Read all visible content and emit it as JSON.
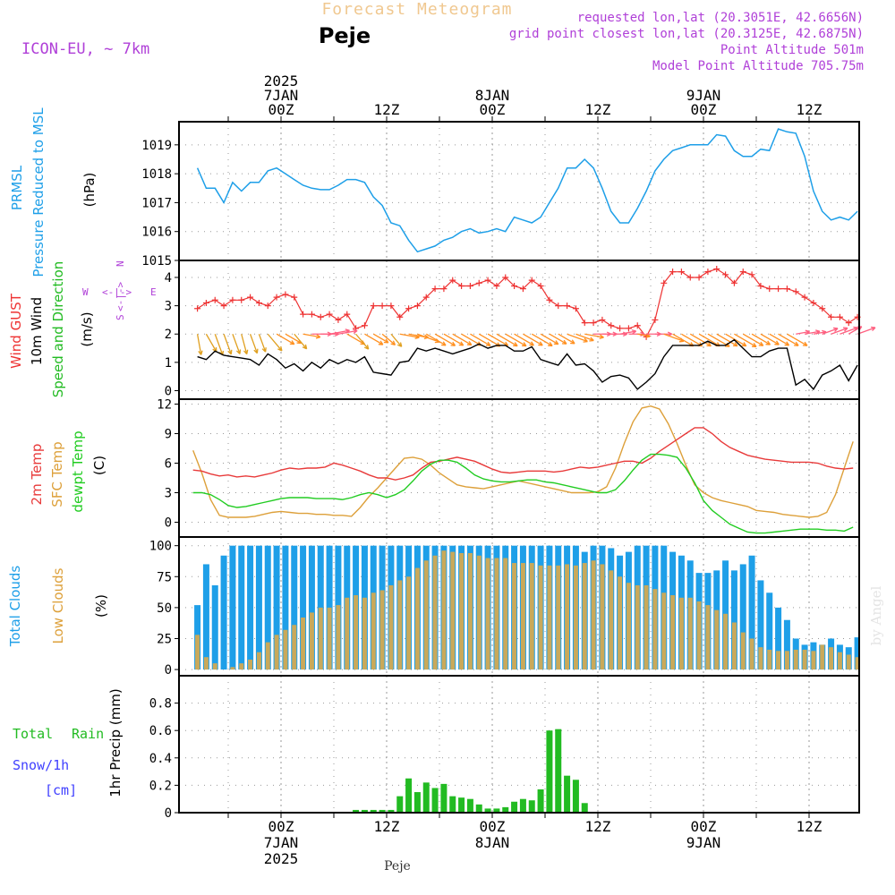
{
  "header": {
    "title": "Forecast Meteogram",
    "location": "Peje",
    "model": "ICON-EU, ~ 7km",
    "requested": "requested lon,lat (20.3051E, 42.6656N)",
    "grid_point": "grid point closest lon,lat (20.3125E, 42.6875N)",
    "point_altitude": "Point Altitude 501m",
    "model_altitude": "Model Point Altitude 705.75m"
  },
  "time_axis": {
    "top_labels": [
      {
        "h": 0,
        "lines": [
          "2025",
          "7JAN",
          "00Z"
        ]
      },
      {
        "h": 12,
        "lines": [
          "12Z"
        ]
      },
      {
        "h": 24,
        "lines": [
          "8JAN",
          "00Z"
        ]
      },
      {
        "h": 36,
        "lines": [
          "12Z"
        ]
      },
      {
        "h": 48,
        "lines": [
          "9JAN",
          "00Z"
        ]
      },
      {
        "h": 60,
        "lines": [
          "12Z"
        ]
      }
    ],
    "bottom_labels": [
      {
        "h": 0,
        "lines": [
          "00Z",
          "7JAN",
          "2025"
        ]
      },
      {
        "h": 12,
        "lines": [
          "12Z"
        ]
      },
      {
        "h": 24,
        "lines": [
          "00Z",
          "8JAN"
        ]
      },
      {
        "h": 36,
        "lines": [
          "12Z"
        ]
      },
      {
        "h": 48,
        "lines": [
          "00Z",
          "9JAN"
        ]
      },
      {
        "h": 60,
        "lines": [
          "12Z"
        ]
      }
    ],
    "footer_location": "Peje",
    "watermark": "by Angel"
  },
  "colors": {
    "pressure": "#1e9fe8",
    "gust": "#ee3333",
    "wind": "#000000",
    "windlabel": "#22bb22",
    "temp2m": "#e83a3a",
    "sfc": "#dda03a",
    "dewpt": "#22cc22",
    "total_clouds": "#1e9fe8",
    "low_clouds": "#c9a95a",
    "rain": "#22bb22",
    "snow": "#4040ff",
    "purple": "#b040d8",
    "title_ghost": "#f0c890"
  },
  "panel_labels": {
    "pressure": {
      "a": "PRMSL",
      "b": "Pressure Reduced to MSL",
      "unit": "(hPa)"
    },
    "wind": {
      "a": "Wind GUST",
      "b": "10m Wind",
      "c": "Speed and Direction",
      "unit": "(m/s)",
      "compass": {
        "n": "N",
        "s": "S",
        "e": "E",
        "w": "W",
        "mid": "<-|->"
      }
    },
    "temp": {
      "a": "2m Temp",
      "b": "SFC Temp",
      "c": "dewpt Temp",
      "unit": "(C)"
    },
    "clouds": {
      "a": "Total Clouds",
      "b": "Low Clouds",
      "unit": "(%)"
    },
    "precip": {
      "a": "Total",
      "a2": "Rain",
      "b": "Snow/1h",
      "c": "[cm]",
      "unit": "1hr Precip (mm)"
    }
  },
  "chart_data": [
    {
      "type": "line",
      "title": "PRMSL Pressure Reduced to MSL",
      "ylabel": "(hPa)",
      "ylim": [
        1015,
        1019.8
      ],
      "yticks": [
        1015,
        1016,
        1017,
        1018,
        1019
      ],
      "x_hours_start": -9.5,
      "x_hours_step": 1,
      "series": [
        {
          "name": "PRMSL",
          "values": [
            1018.2,
            1017.5,
            1017.5,
            1017.0,
            1017.7,
            1017.4,
            1017.7,
            1017.7,
            1018.1,
            1018.2,
            1018.0,
            1017.8,
            1017.6,
            1017.5,
            1017.45,
            1017.45,
            1017.6,
            1017.8,
            1017.8,
            1017.7,
            1017.2,
            1016.9,
            1016.3,
            1016.2,
            1015.7,
            1015.3,
            1015.4,
            1015.5,
            1015.7,
            1015.8,
            1016.0,
            1016.1,
            1015.95,
            1016.0,
            1016.1,
            1016.0,
            1016.5,
            1016.4,
            1016.3,
            1016.5,
            1017.0,
            1017.5,
            1018.2,
            1018.2,
            1018.5,
            1018.2,
            1017.5,
            1016.7,
            1016.3,
            1016.3,
            1016.8,
            1017.4,
            1018.1,
            1018.5,
            1018.8,
            1018.9,
            1019.0,
            1019.0,
            1019.0,
            1019.35,
            1019.3,
            1018.8,
            1018.6,
            1018.6,
            1018.85,
            1018.8,
            1019.55,
            1019.45,
            1019.4,
            1018.6,
            1017.4,
            1016.7,
            1016.4,
            1016.5,
            1016.4,
            1016.7,
            1016.95
          ]
        }
      ]
    },
    {
      "type": "line",
      "title": "Wind GUST / 10m Wind Speed and Direction",
      "ylabel": "(m/s)",
      "ylim": [
        -0.3,
        4.6
      ],
      "yticks": [
        0,
        1,
        2,
        3,
        4
      ],
      "x_hours_start": -9.5,
      "x_hours_step": 1,
      "series": [
        {
          "name": "Wind GUST",
          "values": [
            2.9,
            3.1,
            3.2,
            3.0,
            3.2,
            3.2,
            3.3,
            3.1,
            3.0,
            3.3,
            3.4,
            3.3,
            2.7,
            2.7,
            2.6,
            2.7,
            2.5,
            2.7,
            2.2,
            2.3,
            3.0,
            3.0,
            3.0,
            2.6,
            2.9,
            3.0,
            3.3,
            3.6,
            3.6,
            3.9,
            3.7,
            3.7,
            3.8,
            3.9,
            3.7,
            4.0,
            3.7,
            3.6,
            3.9,
            3.7,
            3.2,
            3.0,
            3.0,
            2.9,
            2.4,
            2.4,
            2.5,
            2.3,
            2.2,
            2.2,
            2.3,
            1.9,
            2.5,
            3.8,
            4.2,
            4.2,
            4.0,
            4.0,
            4.2,
            4.3,
            4.1,
            3.8,
            4.2,
            4.1,
            3.7,
            3.6,
            3.6,
            3.6,
            3.5,
            3.3,
            3.1,
            2.9,
            2.6,
            2.6,
            2.4,
            2.6,
            1.2,
            2.6,
            2.5
          ]
        },
        {
          "name": "10m Wind",
          "values": [
            1.2,
            1.1,
            1.4,
            1.25,
            1.2,
            1.15,
            1.1,
            0.9,
            1.3,
            1.1,
            0.8,
            0.95,
            0.7,
            1.0,
            0.8,
            1.1,
            0.95,
            1.1,
            1.0,
            1.2,
            0.65,
            0.6,
            0.55,
            1.0,
            1.05,
            1.5,
            1.4,
            1.5,
            1.4,
            1.3,
            1.4,
            1.5,
            1.65,
            1.5,
            1.6,
            1.6,
            1.4,
            1.4,
            1.55,
            1.1,
            1.0,
            0.9,
            1.3,
            0.9,
            0.95,
            0.7,
            0.3,
            0.5,
            0.55,
            0.45,
            0.05,
            0.3,
            0.6,
            1.2,
            1.6,
            1.6,
            1.6,
            1.6,
            1.75,
            1.6,
            1.6,
            1.8,
            1.5,
            1.2,
            1.2,
            1.4,
            1.5,
            1.5,
            0.2,
            0.4,
            0.05,
            0.55,
            0.7,
            0.9,
            0.35,
            0.9,
            1.2,
            1.25
          ]
        }
      ],
      "direction_deg": [
        350,
        330,
        340,
        340,
        340,
        345,
        340,
        340,
        320,
        300,
        300,
        320,
        280,
        270,
        270,
        260,
        260,
        300,
        320,
        300,
        300,
        310,
        320,
        280,
        280,
        290,
        300,
        300,
        300,
        300,
        300,
        300,
        300,
        300,
        300,
        300,
        300,
        300,
        300,
        300,
        300,
        300,
        290,
        290,
        280,
        270,
        270,
        270,
        260,
        270,
        280,
        270,
        270,
        290,
        300,
        300,
        300,
        300,
        300,
        300,
        300,
        300,
        300,
        300,
        300,
        300,
        300,
        300,
        260,
        260,
        260,
        250,
        250,
        250,
        240,
        250,
        250,
        250,
        250
      ]
    },
    {
      "type": "line",
      "title": "2m Temp / SFC Temp / dewpt Temp",
      "ylabel": "(C)",
      "ylim": [
        -1.5,
        12.5
      ],
      "yticks": [
        0,
        3,
        6,
        9,
        12
      ],
      "x_hours_start": -10,
      "x_hours_step": 1,
      "series": [
        {
          "name": "2m Temp",
          "values": [
            5.3,
            5.2,
            4.9,
            4.7,
            4.8,
            4.6,
            4.7,
            4.6,
            4.8,
            5.0,
            5.3,
            5.5,
            5.4,
            5.5,
            5.5,
            5.6,
            6.0,
            5.8,
            5.5,
            5.2,
            4.8,
            4.5,
            4.5,
            4.3,
            4.5,
            4.8,
            5.5,
            6.1,
            6.2,
            6.4,
            6.6,
            6.4,
            6.2,
            5.8,
            5.4,
            5.1,
            5.0,
            5.1,
            5.2,
            5.2,
            5.2,
            5.1,
            5.2,
            5.4,
            5.6,
            5.5,
            5.6,
            5.8,
            6.0,
            6.2,
            6.2,
            6.0,
            6.5,
            7.2,
            7.8,
            8.4,
            9.0,
            9.6,
            9.6,
            9.0,
            8.2,
            7.6,
            7.2,
            6.8,
            6.6,
            6.4,
            6.3,
            6.2,
            6.1,
            6.1,
            6.1,
            6.0,
            5.7,
            5.5,
            5.4,
            5.5,
            5.6,
            4.8,
            5.5,
            6.5,
            7.5,
            8.3,
            8.9,
            8.9,
            9.0,
            8.7,
            8.2,
            7.6,
            6.8,
            6.5
          ]
        },
        {
          "name": "SFC Temp",
          "values": [
            7.3,
            5.0,
            2.3,
            0.7,
            0.5,
            0.5,
            0.5,
            0.6,
            0.8,
            1.0,
            1.1,
            1.0,
            0.9,
            0.9,
            0.8,
            0.8,
            0.7,
            0.7,
            0.6,
            1.5,
            2.6,
            3.5,
            4.5,
            5.5,
            6.5,
            6.6,
            6.4,
            5.8,
            5.0,
            4.4,
            3.8,
            3.6,
            3.5,
            3.4,
            3.6,
            3.8,
            4.0,
            4.2,
            4.0,
            3.8,
            3.6,
            3.4,
            3.2,
            3.0,
            3.0,
            3.0,
            3.1,
            3.6,
            5.5,
            8.0,
            10.2,
            11.6,
            11.8,
            11.5,
            10.0,
            8.0,
            5.8,
            3.8,
            3.0,
            2.5,
            2.2,
            2.0,
            1.8,
            1.6,
            1.2,
            1.1,
            1.0,
            0.8,
            0.7,
            0.6,
            0.5,
            0.6,
            1.0,
            2.8,
            5.5,
            8.2,
            10.6,
            11.6,
            11.9,
            11.6,
            10.8,
            9.6,
            8.2,
            6.8,
            5.5,
            4.5
          ]
        },
        {
          "name": "dewpt Temp",
          "values": [
            3.0,
            3.0,
            2.8,
            2.3,
            1.7,
            1.5,
            1.6,
            1.8,
            2.0,
            2.2,
            2.4,
            2.5,
            2.5,
            2.5,
            2.4,
            2.4,
            2.4,
            2.3,
            2.5,
            2.8,
            3.0,
            2.8,
            2.5,
            2.8,
            3.3,
            4.2,
            5.2,
            5.9,
            6.3,
            6.3,
            6.1,
            5.5,
            4.8,
            4.4,
            4.2,
            4.1,
            4.1,
            4.2,
            4.3,
            4.3,
            4.1,
            4.0,
            3.8,
            3.6,
            3.4,
            3.2,
            3.0,
            3.0,
            3.3,
            4.2,
            5.3,
            6.3,
            6.9,
            6.9,
            6.8,
            6.6,
            5.5,
            4.0,
            2.2,
            1.2,
            0.5,
            -0.2,
            -0.6,
            -1.0,
            -1.1,
            -1.1,
            -1.0,
            -0.9,
            -0.8,
            -0.7,
            -0.7,
            -0.7,
            -0.8,
            -0.8,
            -0.9,
            -0.5,
            0.8,
            2.0,
            3.2,
            4.2,
            4.8,
            5.4,
            5.7,
            5.9,
            6.0,
            5.9,
            5.3,
            4.6
          ]
        }
      ]
    },
    {
      "type": "bar",
      "title": "Total Clouds / Low Clouds",
      "ylabel": "(%)",
      "ylim": [
        -5,
        107
      ],
      "yticks": [
        0,
        25,
        50,
        75,
        100
      ],
      "x_hours_start": -9.5,
      "x_hours_step": 1,
      "series": [
        {
          "name": "Total Clouds",
          "values": [
            52,
            85,
            68,
            92,
            100,
            100,
            100,
            100,
            100,
            100,
            100,
            100,
            100,
            100,
            100,
            100,
            100,
            100,
            100,
            100,
            100,
            100,
            100,
            100,
            100,
            100,
            100,
            100,
            100,
            100,
            100,
            100,
            100,
            100,
            100,
            100,
            100,
            100,
            100,
            100,
            100,
            100,
            100,
            100,
            95,
            100,
            100,
            98,
            92,
            95,
            100,
            100,
            100,
            100,
            95,
            92,
            88,
            78,
            78,
            80,
            88,
            80,
            85,
            92,
            72,
            62,
            50,
            40,
            25,
            20,
            22,
            20,
            25,
            20,
            18,
            26,
            35,
            15,
            10,
            12,
            14,
            14,
            14,
            12,
            18,
            12,
            14,
            30,
            48,
            62,
            48,
            56,
            62,
            60,
            64,
            85,
            100
          ]
        },
        {
          "name": "Low Clouds",
          "values": [
            28,
            10,
            5,
            0,
            2,
            5,
            8,
            14,
            22,
            28,
            32,
            36,
            42,
            46,
            50,
            50,
            52,
            58,
            60,
            58,
            62,
            64,
            68,
            72,
            75,
            82,
            88,
            92,
            96,
            95,
            94,
            94,
            92,
            90,
            90,
            90,
            86,
            86,
            86,
            84,
            84,
            84,
            85,
            84,
            86,
            88,
            85,
            80,
            75,
            70,
            68,
            68,
            65,
            62,
            60,
            58,
            58,
            55,
            52,
            48,
            45,
            38,
            30,
            25,
            18,
            16,
            15,
            15,
            16,
            16,
            15,
            20,
            18,
            14,
            12,
            10,
            8,
            10,
            12,
            12,
            12,
            12,
            12,
            16,
            10,
            15,
            28,
            48,
            50,
            48,
            46,
            50,
            50,
            52,
            54,
            55
          ]
        }
      ]
    },
    {
      "type": "bar",
      "title": "Total Rain / Snow (1h)",
      "ylabel": "1hr Precip (mm)",
      "ylim": [
        0,
        1.0
      ],
      "yticks": [
        0,
        0.2,
        0.4,
        0.6,
        0.8
      ],
      "x_hours_start": -9.5,
      "x_hours_step": 1,
      "series": [
        {
          "name": "Rain",
          "values": [
            0,
            0,
            0,
            0,
            0,
            0,
            0,
            0,
            0,
            0,
            0,
            0,
            0,
            0,
            0,
            0,
            0,
            0,
            0.02,
            0.02,
            0.02,
            0.02,
            0.02,
            0.12,
            0.25,
            0.15,
            0.22,
            0.18,
            0.21,
            0.12,
            0.11,
            0.1,
            0.06,
            0.03,
            0.03,
            0.04,
            0.08,
            0.1,
            0.09,
            0.17,
            0.6,
            0.61,
            0.27,
            0.24,
            0.07,
            0,
            0,
            0,
            0,
            0,
            0,
            0,
            0,
            0,
            0,
            0,
            0,
            0,
            0,
            0,
            0,
            0,
            0,
            0,
            0,
            0,
            0,
            0,
            0,
            0,
            0,
            0,
            0,
            0,
            0,
            0,
            0,
            0,
            0,
            0
          ]
        },
        {
          "name": "Snow",
          "values": []
        }
      ]
    }
  ]
}
